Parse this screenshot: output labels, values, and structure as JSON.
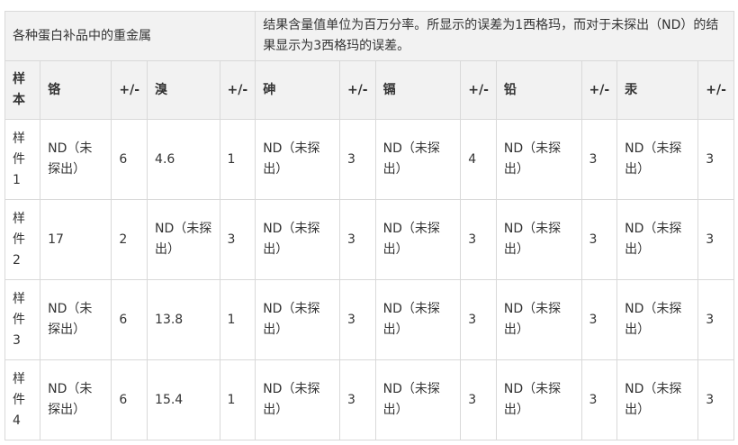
{
  "title_left": "各种蛋白补品中的重金属",
  "title_right": "结果含量值单位为百万分率。所显示的误差为1西格玛，而对于未探出（ND）的结果显示为3西格玛的误差。",
  "headers": [
    "样本",
    "铬",
    "+/-",
    "溴",
    "+/-",
    "砷",
    "+/-",
    "镉",
    "+/-",
    "铅",
    "+/-",
    "汞",
    "+/-"
  ],
  "rows": [
    [
      "样件1",
      "ND（未探出）",
      "6",
      "4.6",
      "1",
      "ND（未探出）",
      "3",
      "ND（未探出）",
      "4",
      "ND（未探出）",
      "3",
      "ND（未探出）",
      "3"
    ],
    [
      "样件2",
      "17",
      "2",
      "ND（未探出）",
      "3",
      "ND（未探出）",
      "3",
      "ND（未探出）",
      "3",
      "ND（未探出）",
      "3",
      "ND（未探出）",
      "3"
    ],
    [
      "样件3",
      "ND（未探出）",
      "6",
      "13.8",
      "1",
      "ND（未探出）",
      "3",
      "ND（未探出）",
      "3",
      "ND（未探出）",
      "3",
      "ND（未探出）",
      "3"
    ],
    [
      "样件4",
      "ND（未探出）",
      "6",
      "15.4",
      "1",
      "ND（未探出）",
      "3",
      "ND（未探出）",
      "3",
      "ND（未探出）",
      "3",
      "ND（未探出）",
      "3"
    ]
  ]
}
